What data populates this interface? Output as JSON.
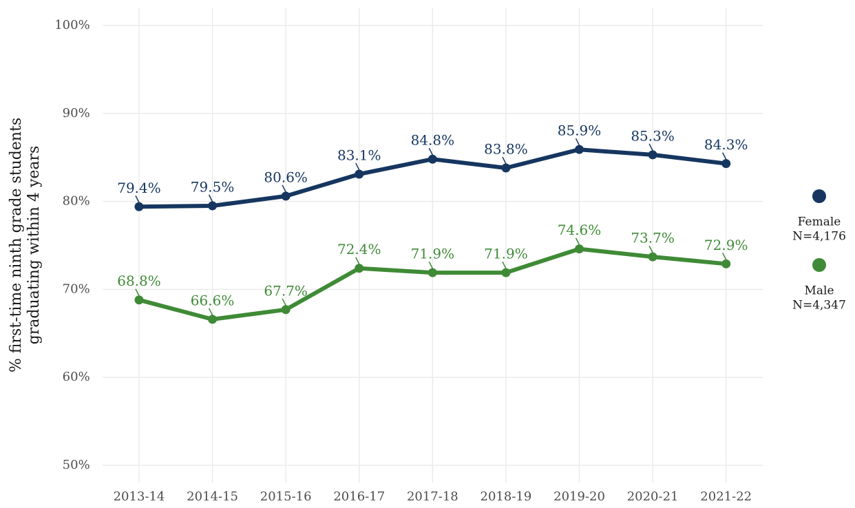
{
  "chart_data": {
    "type": "line",
    "ylabel": [
      "% first-time ninth grade students",
      "graduating within 4 years"
    ],
    "categories": [
      "2013-14",
      "2014-15",
      "2015-16",
      "2016-17",
      "2017-18",
      "2018-19",
      "2019-20",
      "2020-21",
      "2021-22"
    ],
    "series": [
      {
        "name": "Female",
        "n_label": "N=4,176",
        "color": "#163660",
        "values": [
          79.4,
          79.5,
          80.6,
          83.1,
          84.8,
          83.8,
          85.9,
          85.3,
          84.3
        ],
        "value_labels": [
          "79.4%",
          "79.5%",
          "80.6%",
          "83.1%",
          "84.8%",
          "83.8%",
          "85.9%",
          "85.3%",
          "84.3%"
        ]
      },
      {
        "name": "Male",
        "n_label": "N=4,347",
        "color": "#3f8a36",
        "values": [
          68.8,
          66.6,
          67.7,
          72.4,
          71.9,
          71.9,
          74.6,
          73.7,
          72.9
        ],
        "value_labels": [
          "68.8%",
          "66.6%",
          "67.7%",
          "72.4%",
          "71.9%",
          "71.9%",
          "74.6%",
          "73.7%",
          "72.9%"
        ]
      }
    ],
    "ylim": [
      48,
      102
    ],
    "yticks": [
      {
        "value": 50,
        "label": "50%"
      },
      {
        "value": 60,
        "label": "60%"
      },
      {
        "value": 70,
        "label": "70%"
      },
      {
        "value": 80,
        "label": "80%"
      },
      {
        "value": 90,
        "label": "90%"
      },
      {
        "value": 100,
        "label": "100%"
      }
    ],
    "grid": true,
    "legend": "right"
  }
}
